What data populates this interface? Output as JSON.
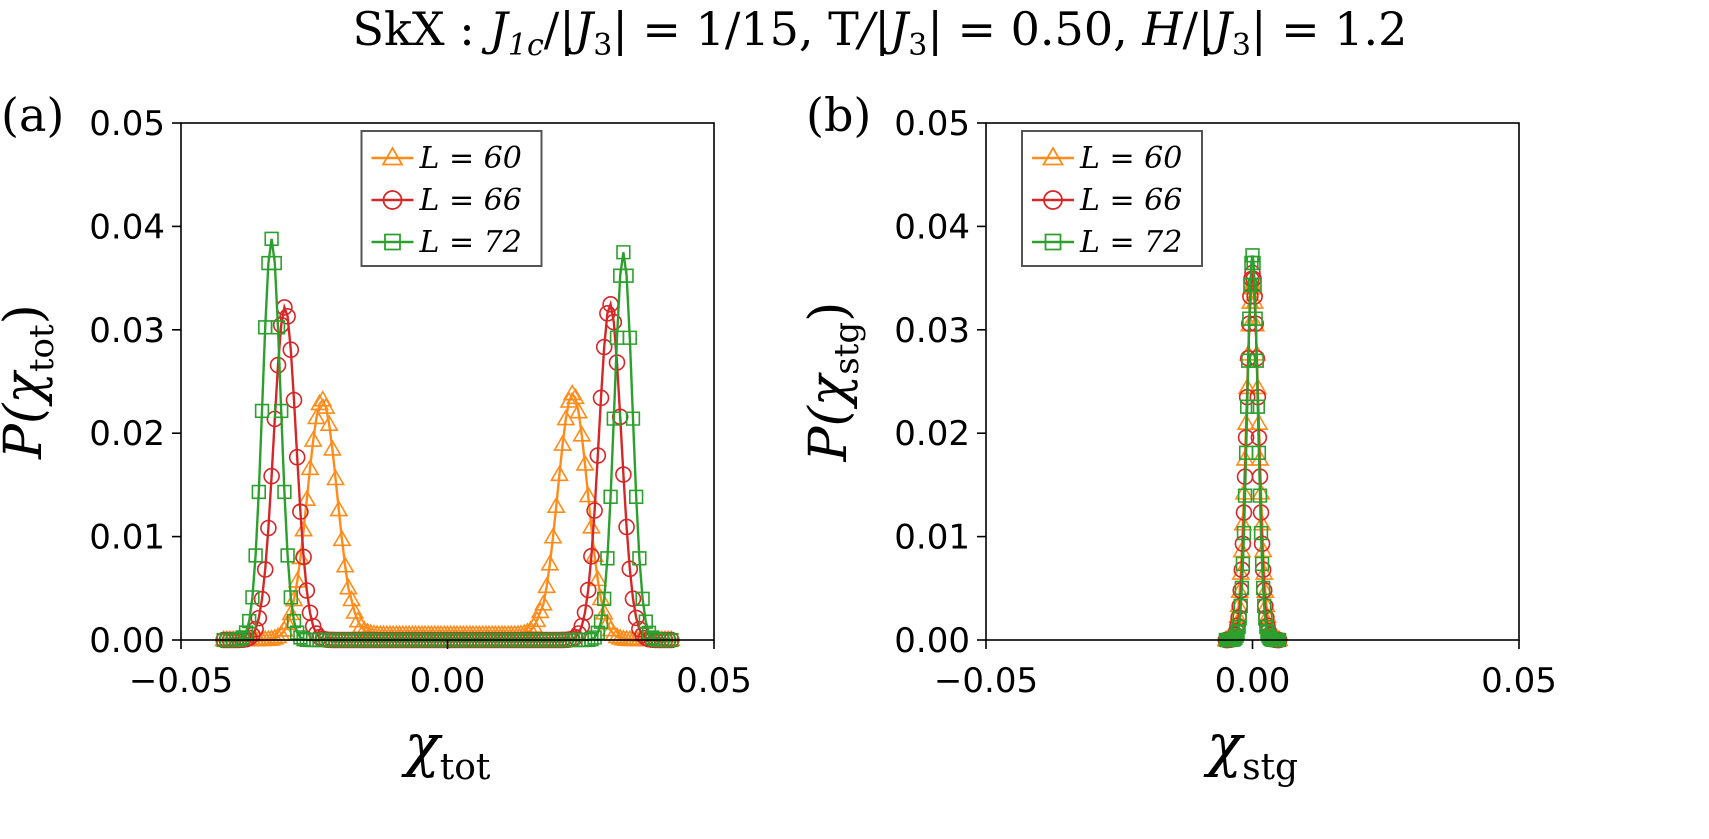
{
  "title": {
    "text_parts": [
      "SkX : ",
      "J",
      "1c",
      "/|",
      "J",
      "3",
      "| = 1/15,  ",
      "T",
      "/|",
      "J",
      "3",
      "| = 0.50,  ",
      "H",
      "/|",
      "J",
      "3",
      "| = 1.2"
    ]
  },
  "chart_data": [
    {
      "panel_label": "(a)",
      "type": "line",
      "xlabel": {
        "main": "χ",
        "sub": "tot"
      },
      "ylabel": {
        "main": "P(χ",
        "sub": "tot",
        "tail": ")"
      },
      "xlim": [
        -0.05,
        0.05
      ],
      "ylim": [
        0.0,
        0.05
      ],
      "xticks": [
        -0.05,
        0.0,
        0.05
      ],
      "xtick_labels": [
        "−0.05",
        "0.00",
        "0.05"
      ],
      "yticks": [
        0.0,
        0.01,
        0.02,
        0.03,
        0.04,
        0.05
      ],
      "ytick_labels": [
        "0.00",
        "0.01",
        "0.02",
        "0.03",
        "0.04",
        "0.05"
      ],
      "legend": {
        "position": "upper-center",
        "entries": [
          "L = 60",
          "L = 66",
          "L = 72"
        ]
      },
      "x_range": [
        -0.042,
        0.042
      ],
      "n_points": 141,
      "series": [
        {
          "name": "L = 60",
          "color": "#ff8c1a",
          "marker": "triangle",
          "peaks": [
            [
              -0.0235,
              0.0232,
              0.0028
            ],
            [
              0.0235,
              0.0238,
              0.0028
            ]
          ],
          "baseline": 0.0005,
          "baseline_range": [
            -0.018,
            0.018
          ]
        },
        {
          "name": "L = 66",
          "color": "#d62728",
          "marker": "circle",
          "peaks": [
            [
              -0.0305,
              0.0322,
              0.0021
            ],
            [
              0.0305,
              0.0325,
              0.0021
            ]
          ],
          "baseline": 0.0,
          "baseline_range": [
            0,
            0
          ]
        },
        {
          "name": "L = 72",
          "color": "#2ca02c",
          "marker": "square",
          "peaks": [
            [
              -0.033,
              0.0388,
              0.0017
            ],
            [
              0.033,
              0.0375,
              0.0017
            ]
          ],
          "baseline": 0.0,
          "baseline_range": [
            0,
            0
          ]
        }
      ]
    },
    {
      "panel_label": "(b)",
      "type": "line",
      "xlabel": {
        "main": "χ",
        "sub": "stg"
      },
      "ylabel": {
        "main": "P(χ",
        "sub": "stg",
        "tail": ")"
      },
      "xlim": [
        -0.05,
        0.05
      ],
      "ylim": [
        0.0,
        0.05
      ],
      "xticks": [
        -0.05,
        0.0,
        0.05
      ],
      "xtick_labels": [
        "−0.05",
        "0.00",
        "0.05"
      ],
      "yticks": [
        0.0,
        0.01,
        0.02,
        0.03,
        0.04,
        0.05
      ],
      "ytick_labels": [
        "0.00",
        "0.01",
        "0.02",
        "0.03",
        "0.04",
        "0.05"
      ],
      "legend": {
        "position": "upper-left",
        "entries": [
          "L = 60",
          "L = 66",
          "L = 72"
        ]
      },
      "x_range": [
        -0.005,
        0.005
      ],
      "n_points": 51,
      "series": [
        {
          "name": "L = 60",
          "color": "#ff8c1a",
          "marker": "triangle",
          "peaks": [
            [
              0.0,
              0.0345,
              0.0012
            ]
          ],
          "baseline": 0.0,
          "baseline_range": [
            0,
            0
          ]
        },
        {
          "name": "L = 66",
          "color": "#d62728",
          "marker": "circle",
          "peaks": [
            [
              0.0,
              0.0355,
              0.0011
            ]
          ],
          "baseline": 0.0,
          "baseline_range": [
            0,
            0
          ]
        },
        {
          "name": "L = 72",
          "color": "#2ca02c",
          "marker": "square",
          "peaks": [
            [
              0.0,
              0.0372,
              0.001
            ]
          ],
          "baseline": 0.0,
          "baseline_range": [
            0,
            0
          ]
        }
      ]
    }
  ]
}
